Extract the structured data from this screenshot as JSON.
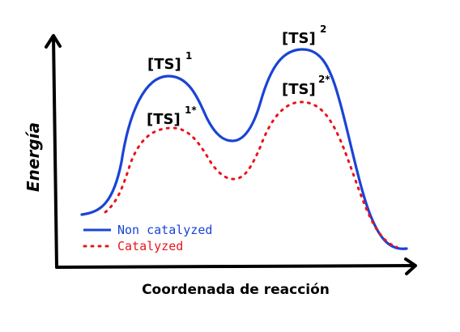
{
  "diagram": {
    "x_axis_title": "Coordenada de reacción",
    "y_axis_title": "Energía",
    "labels": [
      {
        "id": "ts1",
        "base": "[TS]",
        "sup": "1"
      },
      {
        "id": "ts2",
        "base": "[TS]",
        "sup": "2"
      },
      {
        "id": "ts1cat",
        "base": "[TS]",
        "sup": "1*"
      },
      {
        "id": "ts2cat",
        "base": "[TS]",
        "sup": "2*"
      }
    ],
    "legend": [
      {
        "id": "noncat",
        "label": "Non catalyzed",
        "color": "#1a44d6",
        "style": "solid"
      },
      {
        "id": "cat",
        "label": "Catalyzed",
        "color": "#e8141c",
        "style": "dotted"
      }
    ]
  }
}
